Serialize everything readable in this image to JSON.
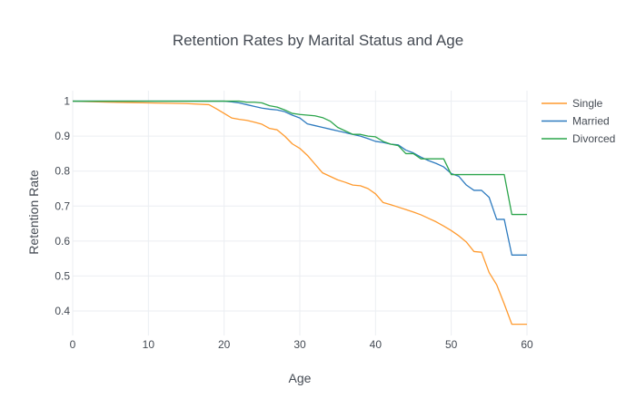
{
  "chart_data": {
    "type": "line",
    "title": "Retention Rates by Marital Status and Age",
    "xlabel": "Age",
    "ylabel": "Retention Rate",
    "xlim": [
      0,
      60
    ],
    "ylim": [
      0.33,
      1.03
    ],
    "xticks": [
      0,
      10,
      20,
      30,
      40,
      50,
      60
    ],
    "yticks": [
      0.4,
      0.5,
      0.6,
      0.7,
      0.8,
      0.9,
      1
    ],
    "grid": true,
    "legend_position": "top-right",
    "series": [
      {
        "name": "Single",
        "color": "#ff9a2e",
        "points": [
          [
            0,
            1.0
          ],
          [
            5,
            0.997
          ],
          [
            10,
            0.995
          ],
          [
            15,
            0.993
          ],
          [
            18,
            0.99
          ],
          [
            19,
            0.978
          ],
          [
            20,
            0.965
          ],
          [
            21,
            0.952
          ],
          [
            22,
            0.948
          ],
          [
            23,
            0.945
          ],
          [
            24,
            0.94
          ],
          [
            25,
            0.934
          ],
          [
            26,
            0.922
          ],
          [
            27,
            0.918
          ],
          [
            28,
            0.9
          ],
          [
            29,
            0.878
          ],
          [
            30,
            0.865
          ],
          [
            31,
            0.845
          ],
          [
            32,
            0.82
          ],
          [
            33,
            0.795
          ],
          [
            34,
            0.785
          ],
          [
            35,
            0.775
          ],
          [
            36,
            0.768
          ],
          [
            37,
            0.76
          ],
          [
            38,
            0.758
          ],
          [
            39,
            0.75
          ],
          [
            40,
            0.735
          ],
          [
            41,
            0.71
          ],
          [
            42,
            0.704
          ],
          [
            43,
            0.697
          ],
          [
            44,
            0.69
          ],
          [
            45,
            0.683
          ],
          [
            46,
            0.675
          ],
          [
            47,
            0.665
          ],
          [
            48,
            0.655
          ],
          [
            49,
            0.643
          ],
          [
            50,
            0.63
          ],
          [
            51,
            0.615
          ],
          [
            52,
            0.597
          ],
          [
            53,
            0.57
          ],
          [
            54,
            0.568
          ],
          [
            55,
            0.51
          ],
          [
            56,
            0.475
          ],
          [
            57,
            0.42
          ],
          [
            58,
            0.362
          ],
          [
            59,
            0.362
          ],
          [
            60,
            0.362
          ]
        ]
      },
      {
        "name": "Married",
        "color": "#2e7bbf",
        "points": [
          [
            0,
            1.0
          ],
          [
            5,
            1.0
          ],
          [
            10,
            1.0
          ],
          [
            15,
            1.0
          ],
          [
            20,
            1.0
          ],
          [
            21,
            0.998
          ],
          [
            22,
            0.995
          ],
          [
            23,
            0.99
          ],
          [
            24,
            0.985
          ],
          [
            25,
            0.98
          ],
          [
            26,
            0.977
          ],
          [
            27,
            0.975
          ],
          [
            28,
            0.97
          ],
          [
            29,
            0.96
          ],
          [
            30,
            0.952
          ],
          [
            31,
            0.935
          ],
          [
            32,
            0.93
          ],
          [
            33,
            0.925
          ],
          [
            34,
            0.92
          ],
          [
            35,
            0.915
          ],
          [
            36,
            0.91
          ],
          [
            37,
            0.905
          ],
          [
            38,
            0.9
          ],
          [
            39,
            0.893
          ],
          [
            40,
            0.885
          ],
          [
            41,
            0.882
          ],
          [
            42,
            0.877
          ],
          [
            43,
            0.875
          ],
          [
            44,
            0.86
          ],
          [
            45,
            0.852
          ],
          [
            46,
            0.84
          ],
          [
            47,
            0.83
          ],
          [
            48,
            0.822
          ],
          [
            49,
            0.812
          ],
          [
            50,
            0.793
          ],
          [
            51,
            0.785
          ],
          [
            52,
            0.76
          ],
          [
            53,
            0.745
          ],
          [
            54,
            0.745
          ],
          [
            55,
            0.725
          ],
          [
            56,
            0.662
          ],
          [
            57,
            0.662
          ],
          [
            58,
            0.56
          ],
          [
            59,
            0.56
          ],
          [
            60,
            0.56
          ]
        ]
      },
      {
        "name": "Divorced",
        "color": "#2ca54c",
        "points": [
          [
            0,
            1.0
          ],
          [
            5,
            1.0
          ],
          [
            10,
            1.0
          ],
          [
            15,
            1.0
          ],
          [
            20,
            1.0
          ],
          [
            22,
            1.0
          ],
          [
            23,
            0.997
          ],
          [
            24,
            0.997
          ],
          [
            25,
            0.995
          ],
          [
            26,
            0.987
          ],
          [
            27,
            0.983
          ],
          [
            28,
            0.975
          ],
          [
            29,
            0.965
          ],
          [
            30,
            0.962
          ],
          [
            31,
            0.96
          ],
          [
            32,
            0.958
          ],
          [
            33,
            0.953
          ],
          [
            34,
            0.943
          ],
          [
            35,
            0.925
          ],
          [
            36,
            0.915
          ],
          [
            37,
            0.905
          ],
          [
            38,
            0.905
          ],
          [
            39,
            0.9
          ],
          [
            40,
            0.898
          ],
          [
            41,
            0.885
          ],
          [
            42,
            0.877
          ],
          [
            43,
            0.873
          ],
          [
            44,
            0.85
          ],
          [
            45,
            0.85
          ],
          [
            46,
            0.835
          ],
          [
            47,
            0.835
          ],
          [
            48,
            0.835
          ],
          [
            49,
            0.835
          ],
          [
            50,
            0.79
          ],
          [
            51,
            0.79
          ],
          [
            52,
            0.79
          ],
          [
            53,
            0.79
          ],
          [
            54,
            0.79
          ],
          [
            55,
            0.79
          ],
          [
            56,
            0.79
          ],
          [
            57,
            0.79
          ],
          [
            58,
            0.676
          ],
          [
            59,
            0.676
          ],
          [
            60,
            0.676
          ]
        ]
      }
    ]
  }
}
